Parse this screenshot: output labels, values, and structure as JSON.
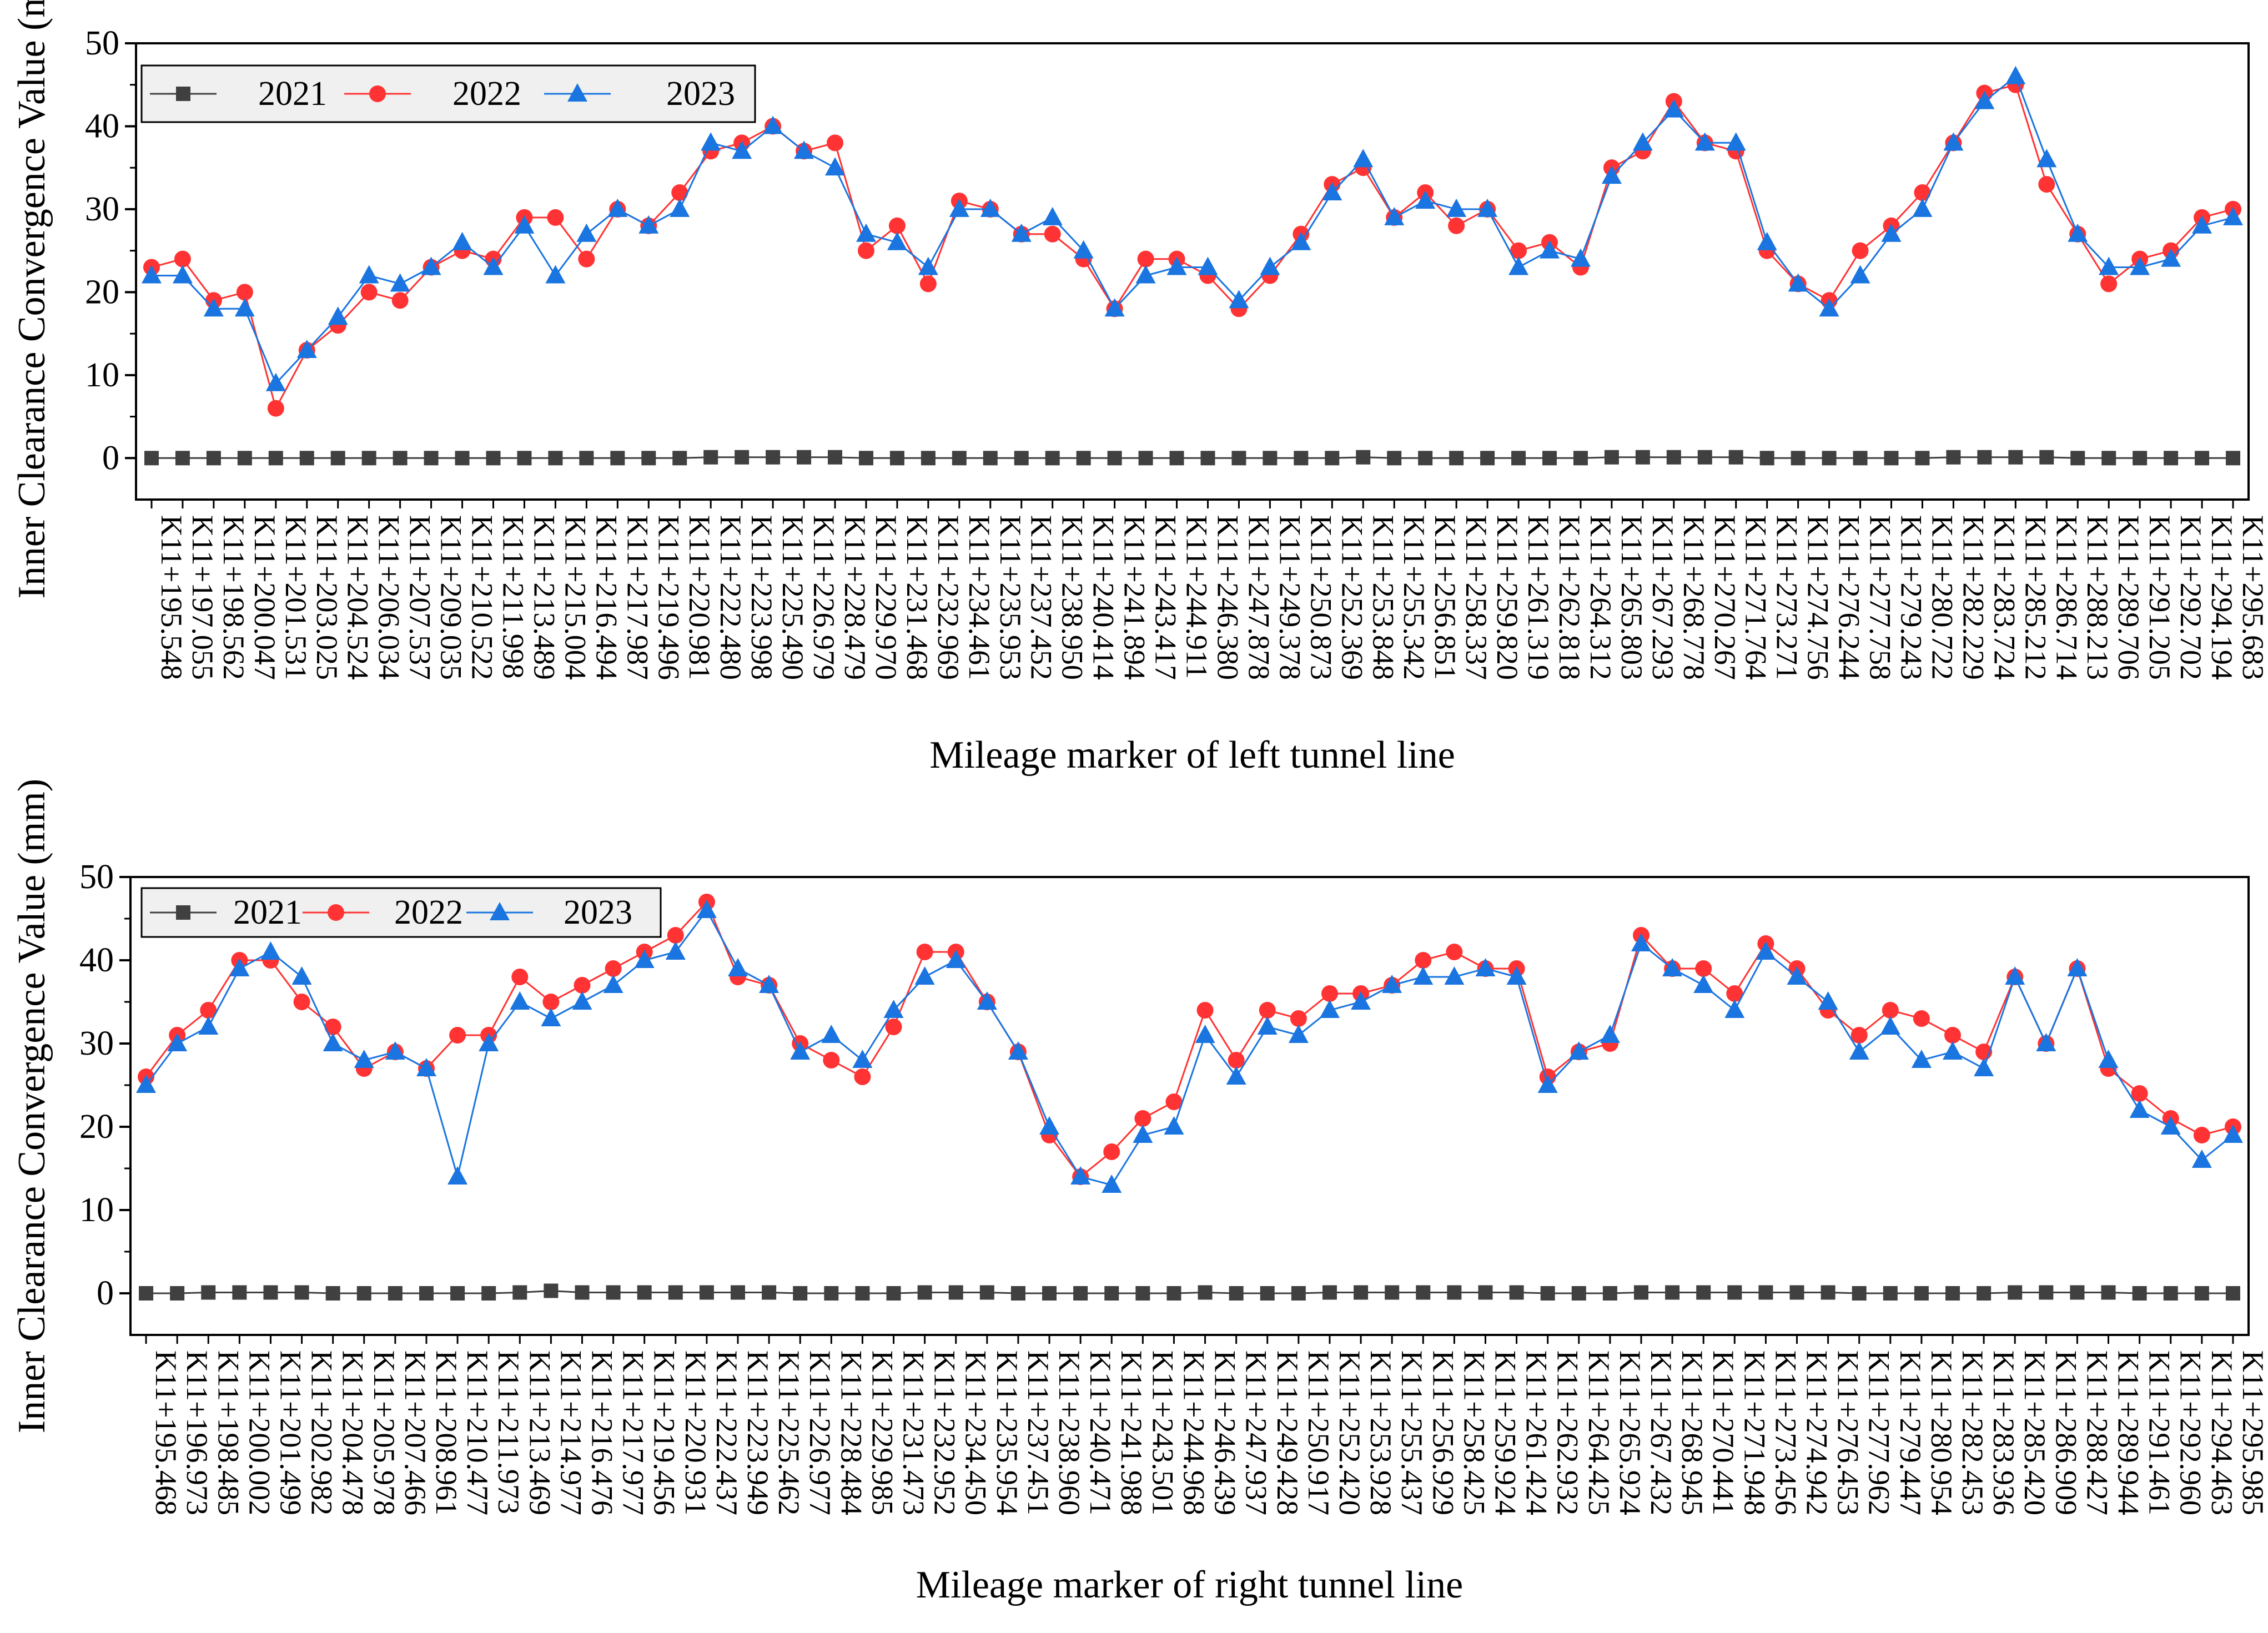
{
  "chart_data": [
    {
      "type": "line",
      "xlabel": "Mileage marker of left tunnel line",
      "ylabel": "Inner Clearance Convergence Value (mm)",
      "ylim": [
        -5,
        50
      ],
      "yticks": [
        0,
        10,
        20,
        30,
        40,
        50
      ],
      "legend_position": "top-left",
      "categories": [
        "K11+195.548",
        "K11+197.055",
        "K11+198.562",
        "K11+200.047",
        "K11+201.531",
        "K11+203.025",
        "K11+204.524",
        "K11+206.034",
        "K11+207.537",
        "K11+209.035",
        "K11+210.522",
        "K11+211.998",
        "K11+213.489",
        "K11+215.004",
        "K11+216.494",
        "K11+217.987",
        "K11+219.496",
        "K11+220.981",
        "K11+222.480",
        "K11+223.998",
        "K11+225.490",
        "K11+226.979",
        "K11+228.479",
        "K11+229.970",
        "K11+231.468",
        "K11+232.969",
        "K11+234.461",
        "K11+235.953",
        "K11+237.452",
        "K11+238.950",
        "K11+240.414",
        "K11+241.894",
        "K11+243.417",
        "K11+244.911",
        "K11+246.380",
        "K11+247.878",
        "K11+249.378",
        "K11+250.873",
        "K11+252.369",
        "K11+253.848",
        "K11+255.342",
        "K11+256.851",
        "K11+258.337",
        "K11+259.820",
        "K11+261.319",
        "K11+262.818",
        "K11+264.312",
        "K11+265.803",
        "K11+267.293",
        "K11+268.778",
        "K11+270.267",
        "K11+271.764",
        "K11+273.271",
        "K11+274.756",
        "K11+276.244",
        "K11+277.758",
        "K11+279.243",
        "K11+280.722",
        "K11+282.229",
        "K11+283.724",
        "K11+285.212",
        "K11+286.714",
        "K11+288.213",
        "K11+289.706",
        "K11+291.205",
        "K11+292.702",
        "K11+294.194",
        "K11+295.683"
      ],
      "series": [
        {
          "name": "2021",
          "color": "#404040",
          "marker": "square",
          "values": [
            0,
            0,
            0,
            0,
            0,
            0,
            0,
            0,
            0,
            0,
            0,
            0,
            0,
            0,
            0,
            0,
            0,
            0,
            0.1,
            0.1,
            0.1,
            0.1,
            0.1,
            0,
            0,
            0,
            0,
            0,
            0,
            0,
            0,
            0,
            0,
            0,
            0,
            0,
            0,
            0,
            0,
            0.1,
            0,
            0,
            0,
            0,
            0,
            0,
            0,
            0.1,
            0.1,
            0.1,
            0.1,
            0.1,
            0,
            0,
            0,
            0,
            0,
            0,
            0.1,
            0.1,
            0.1,
            0.1,
            0,
            0,
            0,
            0,
            0,
            0
          ]
        },
        {
          "name": "2022",
          "color": "#ff3333",
          "marker": "circle",
          "values": [
            23,
            24,
            19,
            20,
            6,
            13,
            16,
            20,
            19,
            23,
            25,
            24,
            29,
            29,
            24,
            30,
            28,
            32,
            37,
            38,
            40,
            37,
            38,
            25,
            28,
            21,
            31,
            30,
            27,
            27,
            24,
            18,
            24,
            24,
            22,
            18,
            22,
            27,
            33,
            35,
            29,
            32,
            28,
            30,
            25,
            26,
            23,
            35,
            37,
            43,
            38,
            37,
            25,
            21,
            19,
            25,
            28,
            32,
            38,
            44,
            45,
            33,
            27,
            21,
            24,
            25,
            29,
            30
          ]
        },
        {
          "name": "2023",
          "color": "#1a75e0",
          "marker": "triangle",
          "values": [
            22,
            22,
            18,
            18,
            9,
            13,
            17,
            22,
            21,
            23,
            26,
            23,
            28,
            22,
            27,
            30,
            28,
            30,
            38,
            37,
            40,
            37,
            35,
            27,
            26,
            23,
            30,
            30,
            27,
            29,
            25,
            18,
            22,
            23,
            23,
            19,
            23,
            26,
            32,
            36,
            29,
            31,
            30,
            30,
            23,
            25,
            24,
            34,
            38,
            42,
            38,
            38,
            26,
            21,
            18,
            22,
            27,
            30,
            38,
            43,
            46,
            36,
            27,
            23,
            23,
            24,
            28,
            29
          ]
        }
      ]
    },
    {
      "type": "line",
      "xlabel": "Mileage marker of right tunnel line",
      "ylabel": "Inner Clearance Convergence Value (mm)",
      "ylim": [
        -5,
        50
      ],
      "yticks": [
        0,
        10,
        20,
        30,
        40,
        50
      ],
      "legend_position": "top-left",
      "categories": [
        "K11+195.468",
        "K11+196.973",
        "K11+198.485",
        "K11+200.002",
        "K11+201.499",
        "K11+202.982",
        "K11+204.478",
        "K11+205.978",
        "K11+207.466",
        "K11+208.961",
        "K11+210.477",
        "K11+211.973",
        "K11+213.469",
        "K11+214.977",
        "K11+216.476",
        "K11+217.977",
        "K11+219.456",
        "K11+220.931",
        "K11+222.437",
        "K11+223.949",
        "K11+225.462",
        "K11+226.977",
        "K11+228.484",
        "K11+229.985",
        "K11+231.473",
        "K11+232.952",
        "K11+234.450",
        "K11+235.954",
        "K11+237.451",
        "K11+238.960",
        "K11+240.471",
        "K11+241.988",
        "K11+243.501",
        "K11+244.968",
        "K11+246.439",
        "K11+247.937",
        "K11+249.428",
        "K11+250.917",
        "K11+252.420",
        "K11+253.928",
        "K11+255.437",
        "K11+256.929",
        "K11+258.425",
        "K11+259.924",
        "K11+261.424",
        "K11+262.932",
        "K11+264.425",
        "K11+265.924",
        "K11+267.432",
        "K11+268.945",
        "K11+270.441",
        "K11+271.948",
        "K11+273.456",
        "K11+274.942",
        "K11+276.453",
        "K11+277.962",
        "K11+279.447",
        "K11+280.954",
        "K11+282.453",
        "K11+283.936",
        "K11+285.420",
        "K11+286.909",
        "K11+288.427",
        "K11+289.944",
        "K11+291.461",
        "K11+292.960",
        "K11+294.463",
        "K11+295.985"
      ],
      "series": [
        {
          "name": "2021",
          "color": "#404040",
          "marker": "square",
          "values": [
            0,
            0,
            0.1,
            0.1,
            0.1,
            0.1,
            0,
            0,
            0,
            0,
            0,
            0,
            0.1,
            0.3,
            0.1,
            0.1,
            0.1,
            0.1,
            0.1,
            0.1,
            0.1,
            0,
            0,
            0,
            0,
            0.1,
            0.1,
            0.1,
            0,
            0,
            0,
            0,
            0,
            0,
            0.1,
            0,
            0,
            0,
            0.1,
            0.1,
            0.1,
            0.1,
            0.1,
            0.1,
            0.1,
            0,
            0,
            0,
            0.1,
            0.1,
            0.1,
            0.1,
            0.1,
            0.1,
            0.1,
            0,
            0,
            0,
            0,
            0,
            0.1,
            0.1,
            0.1,
            0.1,
            0,
            0,
            0,
            0
          ]
        },
        {
          "name": "2022",
          "color": "#ff3333",
          "marker": "circle",
          "values": [
            26,
            31,
            34,
            40,
            40,
            35,
            32,
            27,
            29,
            27,
            31,
            31,
            38,
            35,
            37,
            39,
            41,
            43,
            47,
            38,
            37,
            30,
            28,
            26,
            32,
            41,
            41,
            35,
            29,
            19,
            14,
            17,
            21,
            23,
            34,
            28,
            34,
            33,
            36,
            36,
            37,
            40,
            41,
            39,
            39,
            26,
            29,
            30,
            43,
            39,
            39,
            36,
            42,
            39,
            34,
            31,
            34,
            33,
            31,
            29,
            38,
            30,
            39,
            27,
            24,
            21,
            19,
            20
          ]
        },
        {
          "name": "2023",
          "color": "#1a75e0",
          "marker": "triangle",
          "values": [
            25,
            30,
            32,
            39,
            41,
            38,
            30,
            28,
            29,
            27,
            14,
            30,
            35,
            33,
            35,
            37,
            40,
            41,
            46,
            39,
            37,
            29,
            31,
            28,
            34,
            38,
            40,
            35,
            29,
            20,
            14,
            13,
            19,
            20,
            31,
            26,
            32,
            31,
            34,
            35,
            37,
            38,
            38,
            39,
            38,
            25,
            29,
            31,
            42,
            39,
            37,
            34,
            41,
            38,
            35,
            29,
            32,
            28,
            29,
            27,
            38,
            30,
            39,
            28,
            22,
            20,
            16,
            19
          ]
        }
      ]
    }
  ]
}
